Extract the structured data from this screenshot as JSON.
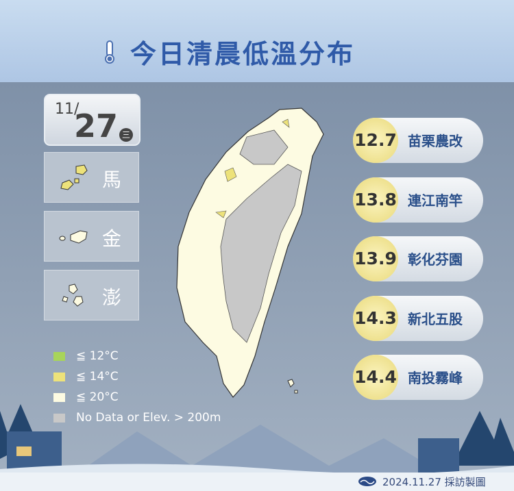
{
  "header": {
    "title": "今日清晨低溫分布",
    "icon": "thermometer-icon"
  },
  "date": {
    "month": "11/",
    "day": "27",
    "weekday": "三"
  },
  "islands": [
    {
      "label": "馬"
    },
    {
      "label": "金"
    },
    {
      "label": "澎"
    }
  ],
  "legend": [
    {
      "label": "≦ 12°C",
      "color": "#a8d45a"
    },
    {
      "label": "≦ 14°C",
      "color": "#ede27a"
    },
    {
      "label": "≦ 20°C",
      "color": "#fdfbe2"
    },
    {
      "label": "No Data or Elev.  > 200m",
      "color": "#c8c8c8"
    }
  ],
  "ranking": [
    {
      "value": "12.7",
      "station": "苗栗農改"
    },
    {
      "value": "13.8",
      "station": "連江南竿"
    },
    {
      "value": "13.9",
      "station": "彰化芬園"
    },
    {
      "value": "14.3",
      "station": "新北五股"
    },
    {
      "value": "14.4",
      "station": "南投霧峰"
    }
  ],
  "footer": {
    "text": "2024.11.27 採訪製圖",
    "logo": "cwa-logo"
  }
}
